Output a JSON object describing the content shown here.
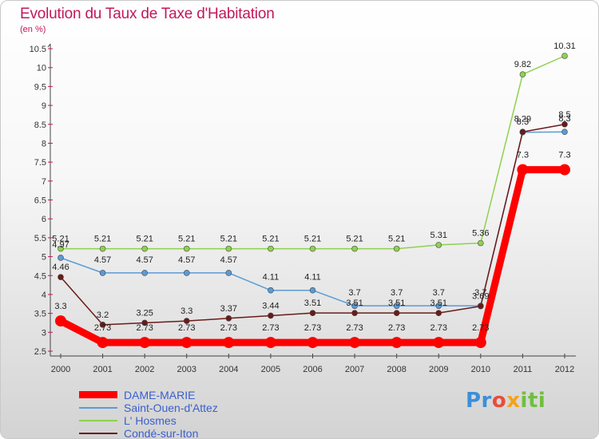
{
  "header": {
    "title": "Evolution du Taux de Taxe d'Habitation",
    "unit": "(en %)"
  },
  "logo": {
    "text": "Proxiti"
  },
  "chart_data": {
    "type": "line",
    "title": "Evolution du Taux de Taxe d'Habitation",
    "ylabel": "(en %)",
    "xlabel": "",
    "x": [
      "2000",
      "2001",
      "2002",
      "2003",
      "2004",
      "2005",
      "2006",
      "2007",
      "2008",
      "2009",
      "2010",
      "2011",
      "2012"
    ],
    "ylim": [
      2.5,
      10.5
    ],
    "yticks": [
      "2.5",
      "3",
      "3.5",
      "4",
      "4.5",
      "5",
      "5.5",
      "6",
      "6.5",
      "7",
      "7.5",
      "8",
      "8.5",
      "9",
      "9.5",
      "10",
      "10.5"
    ],
    "grid": false,
    "legend_position": "bottom-left",
    "series": [
      {
        "name": "DAME-MARIE",
        "color": "#ff0000",
        "values": [
          3.3,
          2.73,
          2.73,
          2.73,
          2.73,
          2.73,
          2.73,
          2.73,
          2.73,
          2.73,
          2.73,
          7.3,
          7.3
        ],
        "labels": [
          "3.3",
          "2.73",
          "2.73",
          "2.73",
          "2.73",
          "2.73",
          "2.73",
          "2.73",
          "2.73",
          "2.73",
          "2.73",
          "7.3",
          "7.3"
        ]
      },
      {
        "name": "Saint-Ouen-d'Attez",
        "color": "#5b9bd5",
        "values": [
          4.97,
          4.57,
          4.57,
          4.57,
          4.57,
          4.11,
          4.11,
          3.7,
          3.7,
          3.7,
          3.7,
          8.29,
          8.3
        ],
        "labels": [
          "4.97",
          "4.57",
          "4.57",
          "4.57",
          "4.57",
          "4.11",
          "4.11",
          "3.7",
          "3.7",
          "3.7",
          "3.7",
          "8.29",
          "8.3"
        ]
      },
      {
        "name": "L' Hosmes",
        "color": "#8fd14f",
        "values": [
          5.21,
          5.21,
          5.21,
          5.21,
          5.21,
          5.21,
          5.21,
          5.21,
          5.21,
          5.31,
          5.36,
          9.82,
          10.31
        ],
        "labels": [
          "5.21",
          "5.21",
          "5.21",
          "5.21",
          "5.21",
          "5.21",
          "5.21",
          "5.21",
          "5.21",
          "5.31",
          "5.36",
          "9.82",
          "10.31"
        ]
      },
      {
        "name": "Condé-sur-Iton",
        "color": "#6b1a1a",
        "values": [
          4.46,
          3.2,
          3.25,
          3.3,
          3.37,
          3.44,
          3.51,
          3.51,
          3.51,
          3.51,
          3.69,
          8.3,
          8.5
        ],
        "labels": [
          "4.46",
          "3.2",
          "3.25",
          "3.3",
          "3.37",
          "3.44",
          "3.51",
          "3.51",
          "3.51",
          "3.51",
          "3.69",
          "8.3",
          "8.5"
        ]
      }
    ]
  }
}
